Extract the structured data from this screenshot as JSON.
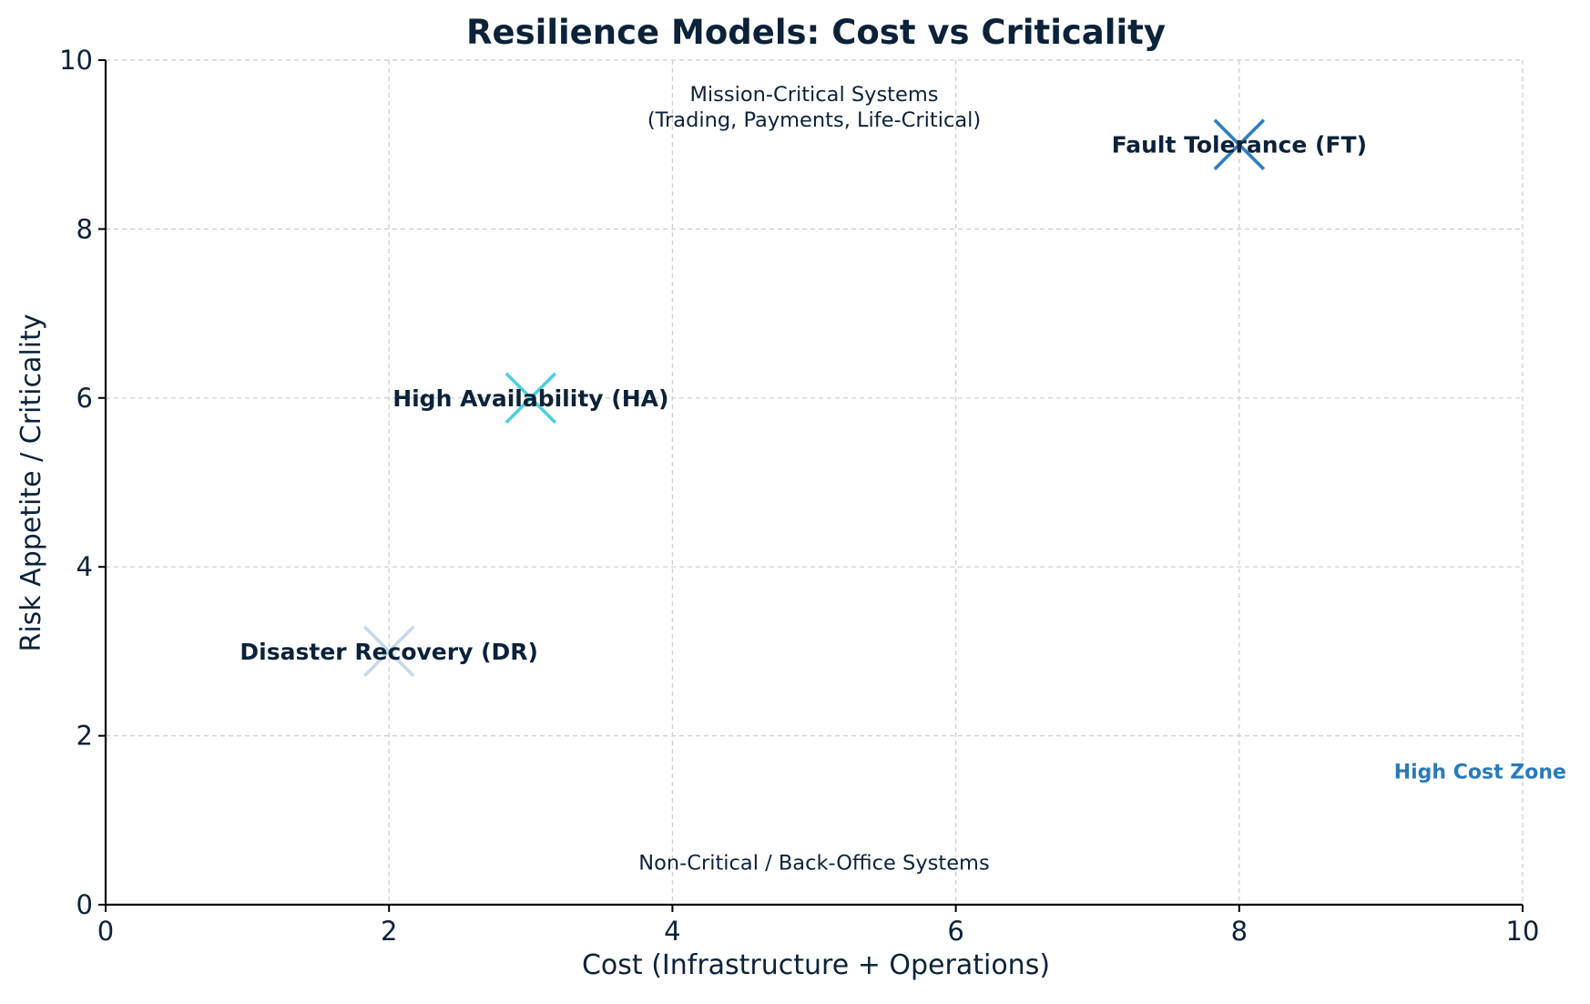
{
  "chart_data": {
    "type": "scatter",
    "title": "Resilience Models: Cost vs Criticality",
    "xlabel": "Cost (Infrastructure + Operations)",
    "ylabel": "Risk Appetite / Criticality",
    "xlim": [
      0,
      10
    ],
    "ylim": [
      0,
      10
    ],
    "xticks": [
      0,
      2,
      4,
      6,
      8,
      10
    ],
    "yticks": [
      0,
      2,
      4,
      6,
      8,
      10
    ],
    "grid": true,
    "marker": "x",
    "colors": {
      "text": "#0b2239",
      "grid": "#cccccc",
      "axis": "#000000",
      "zone_label": "#2a7ab8"
    },
    "points": [
      {
        "label": "Disaster Recovery (DR)",
        "x": 2,
        "y": 3,
        "color": "#c5d9ea"
      },
      {
        "label": "High Availability (HA)",
        "x": 3,
        "y": 6,
        "color": "#4dd0e1"
      },
      {
        "label": "Fault Tolerance (FT)",
        "x": 8,
        "y": 9,
        "color": "#2f7fbf"
      }
    ],
    "annotations": [
      {
        "name": "mission-critical-note",
        "lines": [
          "Mission-Critical Systems",
          "(Trading, Payments, Life-Critical)"
        ],
        "x": 5,
        "y": 9.45
      },
      {
        "name": "non-critical-note",
        "lines": [
          "Non-Critical / Back-Office Systems"
        ],
        "x": 5,
        "y": 0.5
      },
      {
        "name": "high-cost-zone-label",
        "lines": [
          "High Cost Zone"
        ],
        "x": 9.7,
        "y": 1.58,
        "color": "#2a7ab8",
        "bold": true
      }
    ]
  }
}
